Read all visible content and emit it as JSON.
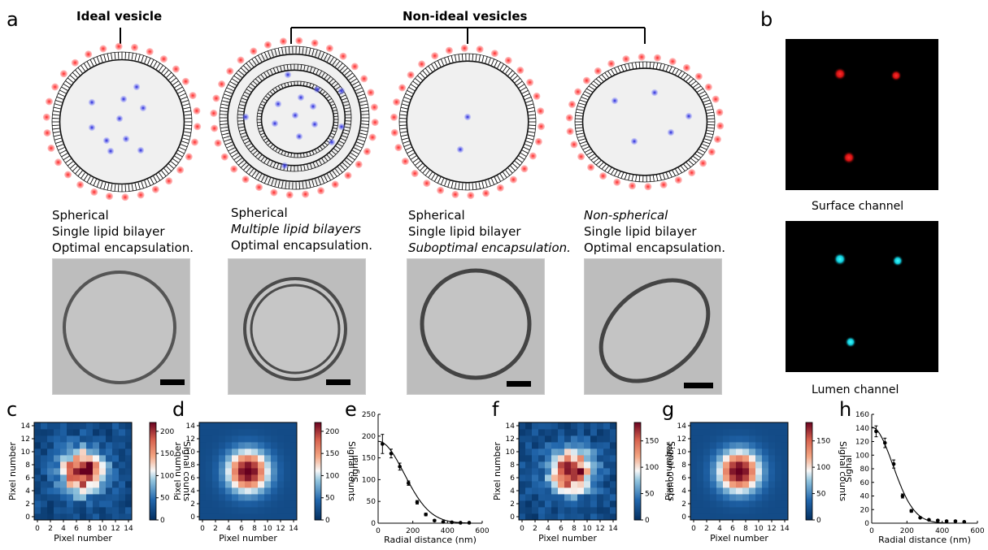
{
  "panel_letters": [
    "a",
    "b",
    "c",
    "d",
    "e",
    "f",
    "g",
    "h"
  ],
  "header": {
    "ideal": "Ideal vesicle",
    "nonideal": "Non-ideal vesicles"
  },
  "descriptions": [
    {
      "lines": [
        {
          "text": "Spherical",
          "italic": false
        },
        {
          "text": "Single lipid bilayer",
          "italic": false
        },
        {
          "text": "Optimal encapsulation.",
          "italic": false
        }
      ]
    },
    {
      "lines": [
        {
          "text": "Spherical",
          "italic": false
        },
        {
          "text": "Multiple lipid bilayers",
          "italic": true
        },
        {
          "text": "Optimal encapsulation.",
          "italic": false
        }
      ]
    },
    {
      "lines": [
        {
          "text": "Spherical",
          "italic": false
        },
        {
          "text": "Single lipid bilayer",
          "italic": false
        },
        {
          "text": "Suboptimal encapsulation.",
          "italic": true
        }
      ]
    },
    {
      "lines": [
        {
          "text": "Non-spherical",
          "italic": true
        },
        {
          "text": "Single lipid bilayer",
          "italic": false
        },
        {
          "text": "Optimal encapsulation.",
          "italic": false
        }
      ]
    }
  ],
  "channels": {
    "surface": "Surface channel",
    "lumen": "Lumen channel"
  },
  "colors": {
    "surface_dot": "#ff2a2a",
    "lumen_dot": "#19e8f0",
    "cargo": "#2233ee",
    "membrane": "#111111"
  },
  "chart_data": [
    {
      "type": "heatmap",
      "panel": "c",
      "ylabel": "Pixel number",
      "xlabel": "Pixel number",
      "colorbar_label": "Signal counts",
      "colorbar_ticks": [
        0,
        50,
        100,
        150,
        200
      ],
      "vmax": 220,
      "xticks": [
        "0",
        "2",
        "4",
        "6",
        "8",
        "10",
        "12",
        "14"
      ],
      "yticks": [
        "0",
        "2",
        "4",
        "6",
        "8",
        "10",
        "12",
        "14"
      ]
    },
    {
      "type": "heatmap",
      "panel": "d",
      "ylabel": "Pixel number",
      "xlabel": "Pixel number",
      "colorbar_label": "Signal counts",
      "colorbar_ticks": [
        0,
        50,
        100,
        150,
        200
      ],
      "vmax": 220,
      "xticks": [
        "0",
        "2",
        "4",
        "6",
        "8",
        "10",
        "12",
        "14"
      ],
      "yticks": [
        "0",
        "2",
        "4",
        "6",
        "8",
        "10",
        "12",
        "14"
      ]
    },
    {
      "type": "line",
      "panel": "e",
      "xlabel": "Radial distance (nm)",
      "ylabel": "Signal",
      "xlim": [
        0,
        600
      ],
      "ylim": [
        0,
        250
      ],
      "xticks": [
        0,
        200,
        400,
        600
      ],
      "yticks": [
        0,
        50,
        100,
        150,
        200,
        250
      ],
      "points": [
        {
          "x": 25,
          "y": 182,
          "err": 22
        },
        {
          "x": 75,
          "y": 160,
          "err": 10
        },
        {
          "x": 125,
          "y": 130,
          "err": 8
        },
        {
          "x": 175,
          "y": 92,
          "err": 5
        },
        {
          "x": 225,
          "y": 48,
          "err": 4
        },
        {
          "x": 275,
          "y": 20,
          "err": 3
        },
        {
          "x": 325,
          "y": 6,
          "err": 2
        },
        {
          "x": 375,
          "y": 3,
          "err": 1
        },
        {
          "x": 425,
          "y": 2,
          "err": 1
        },
        {
          "x": 475,
          "y": 1,
          "err": 1
        },
        {
          "x": 525,
          "y": 1,
          "err": 1
        }
      ]
    },
    {
      "type": "heatmap",
      "panel": "f",
      "ylabel": "Pixel number",
      "xlabel": "Pixel number",
      "colorbar_label": "Signal counts",
      "colorbar_ticks": [
        0,
        50,
        100,
        150
      ],
      "vmax": 185,
      "xticks": [
        "0",
        "2",
        "4",
        "6",
        "8",
        "10",
        "12",
        "14"
      ],
      "yticks": [
        "0",
        "2",
        "4",
        "6",
        "8",
        "10",
        "12",
        "14"
      ]
    },
    {
      "type": "heatmap",
      "panel": "g",
      "ylabel": "Pixel number",
      "xlabel": "Pixel number",
      "colorbar_label": "Signal counts",
      "colorbar_ticks": [
        0,
        50,
        100,
        150
      ],
      "vmax": 185,
      "xticks": [
        "0",
        "2",
        "4",
        "6",
        "8",
        "10",
        "12",
        "14"
      ],
      "yticks": [
        "0",
        "2",
        "4",
        "6",
        "8",
        "10",
        "12",
        "14"
      ]
    },
    {
      "type": "line",
      "panel": "h",
      "xlabel": "Radial distance (nm)",
      "ylabel": "Signal",
      "xlim": [
        0,
        600
      ],
      "ylim": [
        0,
        160
      ],
      "xticks": [
        0,
        200,
        400,
        600
      ],
      "yticks": [
        0,
        20,
        40,
        60,
        80,
        100,
        120,
        140,
        160
      ],
      "points": [
        {
          "x": 25,
          "y": 135,
          "err": 8
        },
        {
          "x": 75,
          "y": 118,
          "err": 7
        },
        {
          "x": 125,
          "y": 87,
          "err": 6
        },
        {
          "x": 175,
          "y": 40,
          "err": 3
        },
        {
          "x": 225,
          "y": 18,
          "err": 2
        },
        {
          "x": 275,
          "y": 8,
          "err": 1
        },
        {
          "x": 325,
          "y": 5,
          "err": 1
        },
        {
          "x": 375,
          "y": 4,
          "err": 1
        },
        {
          "x": 425,
          "y": 3,
          "err": 1
        },
        {
          "x": 475,
          "y": 3,
          "err": 1
        },
        {
          "x": 525,
          "y": 2,
          "err": 1
        }
      ]
    }
  ]
}
